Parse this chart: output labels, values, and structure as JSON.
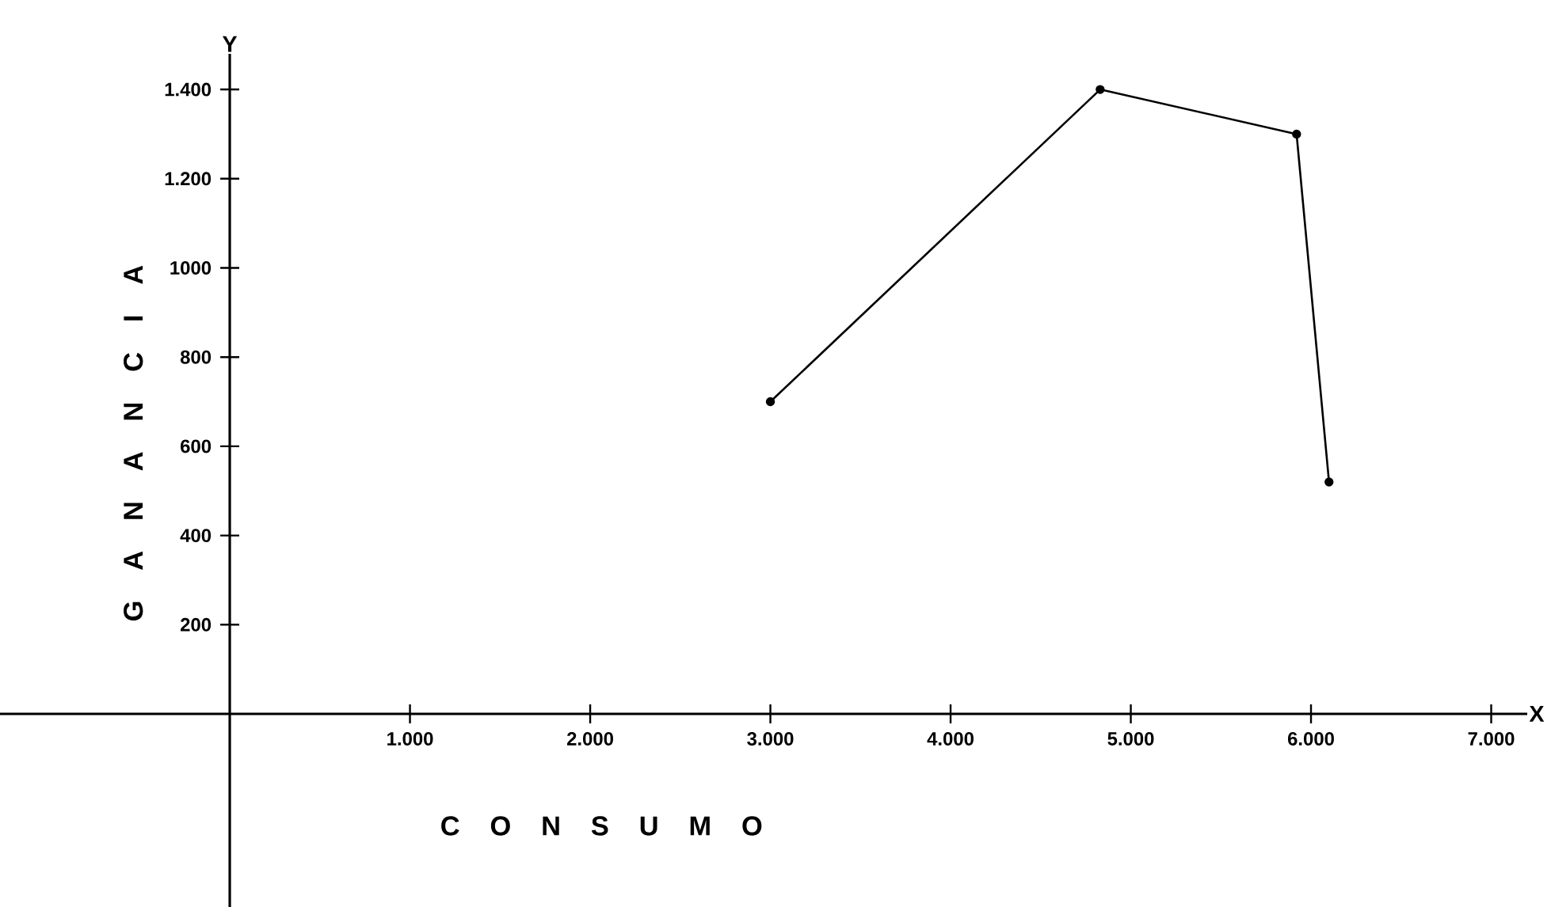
{
  "chart_data": {
    "type": "line",
    "xlabel": "C O N S U M O",
    "ylabel": "G A N A N C I A",
    "annotations": [
      "X",
      "Y"
    ],
    "x": [
      3000,
      4830,
      5920,
      6100
    ],
    "values": [
      700,
      1400,
      1300,
      520
    ],
    "color": "#000000",
    "xlim": [
      -1275,
      7200
    ],
    "ylim": [
      -433,
      1480
    ],
    "xticks": [
      {
        "value": 1000,
        "label": "1.000"
      },
      {
        "value": 2000,
        "label": "2.000"
      },
      {
        "value": 3000,
        "label": "3.000"
      },
      {
        "value": 4000,
        "label": "4.000"
      },
      {
        "value": 5000,
        "label": "5.000"
      },
      {
        "value": 6000,
        "label": "6.000"
      },
      {
        "value": 7000,
        "label": "7.000"
      }
    ],
    "yticks": [
      {
        "value": 200,
        "label": "200"
      },
      {
        "value": 400,
        "label": "400"
      },
      {
        "value": 600,
        "label": "600"
      },
      {
        "value": 800,
        "label": "800"
      },
      {
        "value": 1000,
        "label": "1000"
      },
      {
        "value": 1200,
        "label": "1.200"
      },
      {
        "value": 1400,
        "label": "1.400"
      }
    ],
    "grid": false,
    "marker": "circle",
    "line_style": "solid"
  }
}
